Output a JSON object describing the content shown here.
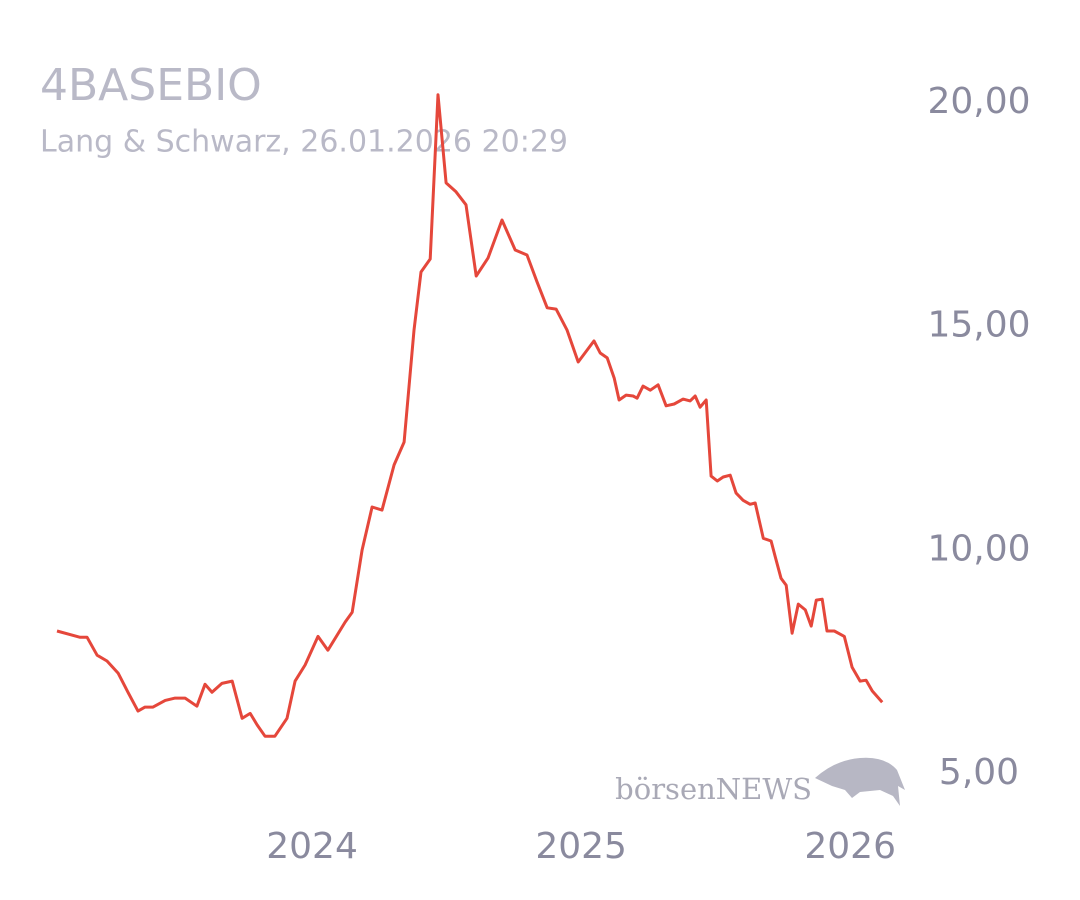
{
  "chart_data": {
    "type": "line",
    "title": "4BASEBIO",
    "subtitle": "Lang & Schwarz, 26.01.2026 20:29",
    "watermark": "börsenNEWS",
    "color": "#e5473b",
    "x": [
      2023.052,
      2023.138,
      2023.164,
      2023.201,
      2023.238,
      2023.279,
      2023.316,
      2023.353,
      2023.379,
      2023.409,
      2023.454,
      2023.491,
      2023.528,
      2023.572,
      2023.602,
      2023.628,
      2023.665,
      2023.703,
      2023.74,
      2023.77,
      2023.796,
      2023.825,
      2023.862,
      2023.907,
      2023.937,
      2023.974,
      2024.022,
      2024.059,
      2024.123,
      2024.149,
      2024.186,
      2024.223,
      2024.26,
      2024.305,
      2024.342,
      2024.379,
      2024.405,
      2024.439,
      2024.468,
      2024.498,
      2024.535,
      2024.572,
      2024.61,
      2024.654,
      2024.706,
      2024.755,
      2024.799,
      2024.836,
      2024.874,
      2024.907,
      2024.948,
      2024.989,
      2025.048,
      2025.071,
      2025.097,
      2025.123,
      2025.141,
      2025.167,
      2025.193,
      2025.208,
      2025.23,
      2025.257,
      2025.286,
      2025.316,
      2025.346,
      2025.379,
      2025.405,
      2025.424,
      2025.442,
      2025.465,
      2025.483,
      2025.506,
      2025.528,
      2025.554,
      2025.576,
      2025.602,
      2025.628,
      2025.647,
      2025.677,
      2025.706,
      2025.721,
      2025.743,
      2025.762,
      2025.784,
      2025.807,
      2025.833,
      2025.855,
      2025.874,
      2025.896,
      2025.914,
      2025.941,
      2025.978,
      2026.007,
      2026.037,
      2026.059,
      2026.082,
      2026.119
    ],
    "values": [
      8.2,
      8.06,
      8.06,
      7.66,
      7.53,
      7.26,
      6.83,
      6.41,
      6.5,
      6.5,
      6.65,
      6.7,
      6.7,
      6.52,
      7.01,
      6.83,
      7.03,
      7.08,
      6.25,
      6.36,
      6.1,
      5.85,
      5.85,
      6.25,
      7.08,
      7.44,
      8.08,
      7.77,
      8.4,
      8.62,
      10.01,
      10.97,
      10.9,
      11.91,
      12.42,
      14.92,
      16.22,
      16.51,
      20.18,
      18.21,
      18.01,
      17.72,
      16.13,
      16.53,
      17.38,
      16.71,
      16.6,
      16.0,
      15.42,
      15.39,
      14.92,
      14.21,
      14.68,
      14.41,
      14.3,
      13.85,
      13.36,
      13.47,
      13.45,
      13.4,
      13.67,
      13.58,
      13.7,
      13.23,
      13.27,
      13.38,
      13.34,
      13.45,
      13.2,
      13.36,
      11.66,
      11.55,
      11.64,
      11.68,
      11.28,
      11.12,
      11.03,
      11.06,
      10.27,
      10.21,
      9.87,
      9.38,
      9.22,
      8.15,
      8.8,
      8.67,
      8.31,
      8.89,
      8.91,
      8.2,
      8.2,
      8.08,
      7.39,
      7.08,
      7.1,
      6.86,
      6.61
    ],
    "xlim": [
      2023.0,
      2026.2
    ],
    "xticks": [
      2024,
      2025,
      2026
    ],
    "ylim": [
      4,
      21
    ],
    "yticks": [
      {
        "value": 5,
        "label": "5,00"
      },
      {
        "value": 10,
        "label": "10,00"
      },
      {
        "value": 15,
        "label": "15,00"
      },
      {
        "value": 20,
        "label": "20,00"
      }
    ],
    "grid": false
  }
}
